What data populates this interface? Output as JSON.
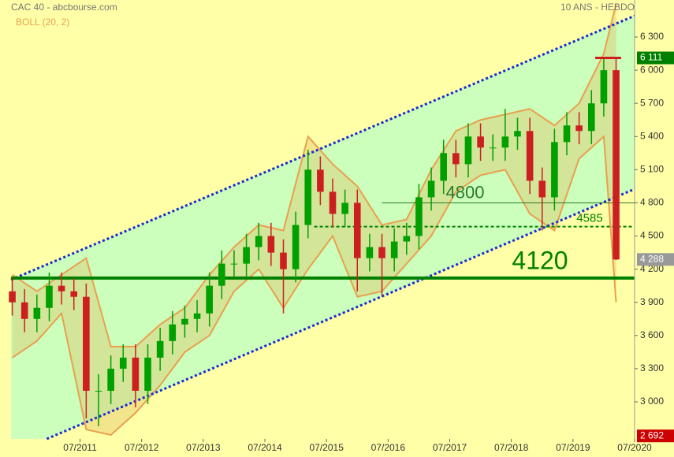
{
  "chart_data": {
    "type": "candlestick",
    "title": "CAC 40 - abcbourse.com",
    "subtitle": "10 ANS - HEBDO",
    "indicator": "BOLL (20, 2)",
    "up_color": "#00a000",
    "down_color": "#cc2020",
    "x": [
      2010.4,
      2010.6,
      2010.8,
      2011.0,
      2011.2,
      2011.4,
      2011.6,
      2011.8,
      2012.0,
      2012.2,
      2012.4,
      2012.6,
      2012.8,
      2013.0,
      2013.2,
      2013.4,
      2013.6,
      2013.8,
      2014.0,
      2014.2,
      2014.4,
      2014.6,
      2014.8,
      2015.0,
      2015.2,
      2015.4,
      2015.6,
      2015.8,
      2016.0,
      2016.2,
      2016.4,
      2016.6,
      2016.8,
      2017.0,
      2017.2,
      2017.4,
      2017.6,
      2017.8,
      2018.0,
      2018.2,
      2018.4,
      2018.6,
      2018.8,
      2019.0,
      2019.2,
      2019.4,
      2019.6,
      2019.8,
      2020.0,
      2020.2
    ],
    "series": [
      {
        "open": [
          4000,
          3900,
          3750,
          3850,
          4050,
          4000,
          3950,
          3100,
          3100,
          3300,
          3400,
          3100,
          3400,
          3550,
          3700,
          3750,
          3800,
          4050,
          4250,
          4250,
          4400,
          4500,
          4350,
          4200,
          4600,
          5100,
          4900,
          4700,
          4800,
          4300,
          4400,
          4300,
          4450,
          4500,
          4850,
          5000,
          5250,
          5150,
          5400,
          5300,
          5300,
          5400,
          5450,
          5000,
          4850,
          5350,
          5500,
          5450,
          5700,
          6000
        ],
        "high": [
          4120,
          4020,
          3970,
          4170,
          4170,
          4120,
          4070,
          3250,
          3420,
          3520,
          3520,
          3520,
          3670,
          3820,
          3870,
          3920,
          4170,
          4370,
          4370,
          4520,
          4620,
          4620,
          4470,
          4720,
          5280,
          5220,
          5020,
          4920,
          4920,
          4520,
          4520,
          4570,
          4620,
          4970,
          5120,
          5370,
          5370,
          5520,
          5520,
          5420,
          5650,
          5570,
          5570,
          5120,
          5470,
          5620,
          5620,
          5820,
          6120,
          6111
        ],
        "low": [
          3780,
          3630,
          3630,
          3730,
          3880,
          3830,
          2850,
          2780,
          2980,
          3180,
          2950,
          2980,
          3280,
          3430,
          3580,
          3630,
          3680,
          3930,
          4130,
          4130,
          4280,
          4230,
          3800,
          4080,
          4480,
          4780,
          4580,
          4580,
          4000,
          4180,
          3950,
          4180,
          4330,
          4380,
          4730,
          4880,
          5030,
          5030,
          5180,
          5180,
          5180,
          5280,
          4880,
          4550,
          4730,
          5230,
          5330,
          5330,
          5580,
          4283
        ],
        "close": [
          3900,
          3750,
          3850,
          4050,
          4000,
          3950,
          3100,
          3100,
          3300,
          3400,
          3100,
          3400,
          3550,
          3700,
          3750,
          3800,
          4050,
          4250,
          4250,
          4400,
          4500,
          4350,
          4200,
          4600,
          5100,
          4900,
          4700,
          4800,
          4300,
          4400,
          4300,
          4450,
          4500,
          4850,
          5000,
          5250,
          5150,
          5400,
          5300,
          5300,
          5400,
          5450,
          5000,
          4850,
          5350,
          5500,
          5450,
          5700,
          6000,
          4288
        ]
      }
    ],
    "bollinger": {
      "color": "#e8a050",
      "x": [
        2010.4,
        2010.8,
        2011.2,
        2011.6,
        2012.0,
        2012.4,
        2012.8,
        2013.2,
        2013.6,
        2014.0,
        2014.4,
        2014.8,
        2015.2,
        2015.6,
        2016.0,
        2016.4,
        2016.8,
        2017.2,
        2017.6,
        2018.0,
        2018.4,
        2018.8,
        2019.2,
        2019.6,
        2020.0,
        2020.2
      ],
      "upper": [
        4150,
        4000,
        4150,
        4300,
        3500,
        3500,
        3700,
        3850,
        4150,
        4400,
        4600,
        4550,
        5400,
        5150,
        4950,
        4600,
        4650,
        5100,
        5450,
        5550,
        5600,
        5650,
        5500,
        5700,
        6150,
        6600
      ],
      "lower": [
        3400,
        3550,
        3800,
        2750,
        2700,
        2900,
        3150,
        3450,
        3600,
        4000,
        4200,
        3850,
        4200,
        4500,
        3950,
        4000,
        4250,
        4500,
        4900,
        5050,
        5100,
        4700,
        4550,
        5200,
        5400,
        3900
      ]
    },
    "channel": {
      "color": "#1a2ad0",
      "lines": [
        {
          "x": [
            2010.38,
            2020.5
          ],
          "values": [
            4105,
            6492
          ]
        },
        {
          "x": [
            2010.96,
            2020.5
          ],
          "values": [
            2665,
            4925
          ]
        }
      ]
    },
    "levels": [
      {
        "value": 4120,
        "x": [
          2010.38,
          2020.5
        ],
        "color": "#008000"
      },
      {
        "value": 4800,
        "x": [
          2016.4,
          2020.5
        ],
        "color": "#2a7a2a"
      },
      {
        "value": 4585,
        "x": [
          2015.3,
          2020.5
        ],
        "color": "#008000"
      }
    ],
    "price_labels": [
      {
        "value": 6111,
        "label": "6 111",
        "color": "#008000"
      },
      {
        "value": 4288,
        "label": "4 288",
        "color": "#999999"
      },
      {
        "value": 2692,
        "label": "2 692",
        "color": "#cc0000"
      }
    ],
    "xlim": [
      2010.38,
      2020.5
    ],
    "ylim": [
      2665,
      6635
    ],
    "xticks": [
      {
        "value": 2011.5,
        "label": "07/2011"
      },
      {
        "value": 2012.5,
        "label": "07/2012"
      },
      {
        "value": 2013.5,
        "label": "07/2013"
      },
      {
        "value": 2014.5,
        "label": "07/2014"
      },
      {
        "value": 2015.5,
        "label": "07/2015"
      },
      {
        "value": 2016.5,
        "label": "07/2016"
      },
      {
        "value": 2017.5,
        "label": "07/2017"
      },
      {
        "value": 2018.5,
        "label": "07/2018"
      },
      {
        "value": 2019.5,
        "label": "07/2019"
      },
      {
        "value": 2020.5,
        "label": "07/2020"
      }
    ],
    "yticks": [
      {
        "value": 3000,
        "label": "3 000"
      },
      {
        "value": 3300,
        "label": "3 300"
      },
      {
        "value": 3600,
        "label": "3 600"
      },
      {
        "value": 3900,
        "label": "3 900"
      },
      {
        "value": 4200,
        "label": "4 200"
      },
      {
        "value": 4500,
        "label": "4 500"
      },
      {
        "value": 4800,
        "label": "4 800"
      },
      {
        "value": 5100,
        "label": "5 100"
      },
      {
        "value": 5400,
        "label": "5 400"
      },
      {
        "value": 5700,
        "label": "5 700"
      },
      {
        "value": 6000,
        "label": "6 000"
      },
      {
        "value": 6300,
        "label": "6 300"
      }
    ],
    "grid": false
  }
}
